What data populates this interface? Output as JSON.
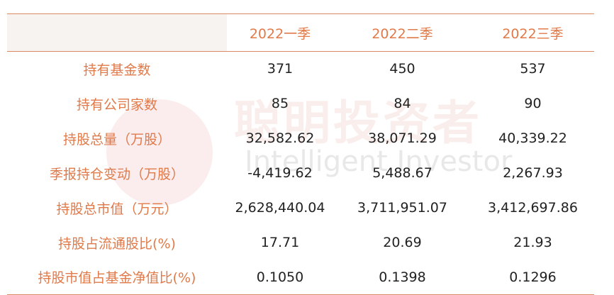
{
  "table": {
    "header": [
      "2022一季",
      "2022二季",
      "2022三季"
    ],
    "rows": [
      [
        "持有基金数",
        "371",
        "450",
        "537"
      ],
      [
        "持有公司家数",
        "85",
        "84",
        "90"
      ],
      [
        "持股总量（万股）",
        "32,582.62",
        "38,071.29",
        "40,339.22"
      ],
      [
        "季报持仓变动（万股）",
        "-4,419.62",
        "5,488.67",
        "2,267.93"
      ],
      [
        "持股总市值（万元）",
        "2,628,440.04",
        "3,711,951.07",
        "3,412,697.86"
      ],
      [
        "持股占流通股比(%)",
        "17.71",
        "20.69",
        "21.93"
      ],
      [
        "持股市值占基金净值比(%)",
        "0.1050",
        "0.1398",
        "0.1296"
      ]
    ]
  },
  "watermark": {
    "title": "聪明投资者",
    "subtitle": "Intelligent Investor"
  }
}
